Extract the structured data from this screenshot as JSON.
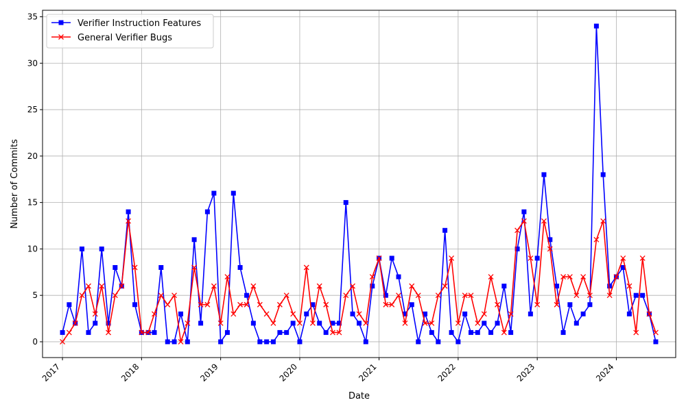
{
  "chart_data": {
    "type": "line",
    "title": "",
    "xlabel": "Date",
    "ylabel": "Number of Commits",
    "xlim": [
      "2016-10-01",
      "2024-10-01"
    ],
    "ylim": [
      -1.7,
      35.7
    ],
    "x_ticks": [
      "2017",
      "2018",
      "2019",
      "2020",
      "2021",
      "2022",
      "2023",
      "2024"
    ],
    "y_ticks": [
      0,
      5,
      10,
      15,
      20,
      25,
      30,
      35
    ],
    "grid": true,
    "legend_position": "top-left",
    "x": [
      "2017-01",
      "2017-02",
      "2017-03",
      "2017-04",
      "2017-05",
      "2017-06",
      "2017-07",
      "2017-08",
      "2017-09",
      "2017-10",
      "2017-11",
      "2017-12",
      "2018-01",
      "2018-02",
      "2018-03",
      "2018-04",
      "2018-05",
      "2018-06",
      "2018-07",
      "2018-08",
      "2018-09",
      "2018-10",
      "2018-11",
      "2018-12",
      "2019-01",
      "2019-02",
      "2019-03",
      "2019-04",
      "2019-05",
      "2019-06",
      "2019-07",
      "2019-08",
      "2019-09",
      "2019-10",
      "2019-11",
      "2019-12",
      "2020-01",
      "2020-02",
      "2020-03",
      "2020-04",
      "2020-05",
      "2020-06",
      "2020-07",
      "2020-08",
      "2020-09",
      "2020-10",
      "2020-11",
      "2020-12",
      "2021-01",
      "2021-02",
      "2021-03",
      "2021-04",
      "2021-05",
      "2021-06",
      "2021-07",
      "2021-08",
      "2021-09",
      "2021-10",
      "2021-11",
      "2021-12",
      "2022-01",
      "2022-02",
      "2022-03",
      "2022-04",
      "2022-05",
      "2022-06",
      "2022-07",
      "2022-08",
      "2022-09",
      "2022-10",
      "2022-11",
      "2022-12",
      "2023-01",
      "2023-02",
      "2023-03",
      "2023-04",
      "2023-05",
      "2023-06",
      "2023-07",
      "2023-08",
      "2023-09",
      "2023-10",
      "2023-11",
      "2023-12",
      "2024-01",
      "2024-02",
      "2024-03",
      "2024-04",
      "2024-05",
      "2024-06",
      "2024-07"
    ],
    "series": [
      {
        "name": "Verifier Instruction Features",
        "color": "#0000ff",
        "marker": "square",
        "values": [
          1,
          4,
          2,
          10,
          1,
          2,
          10,
          2,
          8,
          6,
          14,
          4,
          1,
          1,
          1,
          8,
          0,
          0,
          3,
          0,
          11,
          2,
          14,
          16,
          0,
          1,
          16,
          8,
          5,
          2,
          0,
          0,
          0,
          1,
          1,
          2,
          0,
          3,
          4,
          2,
          1,
          2,
          2,
          15,
          3,
          2,
          0,
          6,
          9,
          5,
          9,
          7,
          3,
          4,
          0,
          3,
          1,
          0,
          12,
          1,
          0,
          3,
          1,
          1,
          2,
          1,
          2,
          6,
          1,
          10,
          14,
          3,
          9,
          18,
          11,
          6,
          1,
          4,
          2,
          3,
          4,
          34,
          18,
          6,
          7,
          8,
          3,
          5,
          5,
          3,
          0
        ]
      },
      {
        "name": "General Verifier Bugs",
        "color": "#ff0000",
        "marker": "x",
        "values": [
          0,
          1,
          2,
          5,
          6,
          3,
          6,
          1,
          5,
          6,
          13,
          8,
          1,
          1,
          3,
          5,
          4,
          5,
          0,
          2,
          8,
          4,
          4,
          6,
          2,
          7,
          3,
          4,
          4,
          6,
          4,
          3,
          2,
          4,
          5,
          3,
          2,
          8,
          2,
          6,
          4,
          1,
          1,
          5,
          6,
          3,
          2,
          7,
          9,
          4,
          4,
          5,
          2,
          6,
          5,
          2,
          2,
          5,
          6,
          9,
          2,
          5,
          5,
          2,
          3,
          7,
          4,
          1,
          3,
          12,
          13,
          9,
          4,
          13,
          10,
          4,
          7,
          7,
          5,
          7,
          5,
          11,
          13,
          5,
          7,
          9,
          6,
          1,
          9,
          3,
          1
        ]
      }
    ]
  }
}
